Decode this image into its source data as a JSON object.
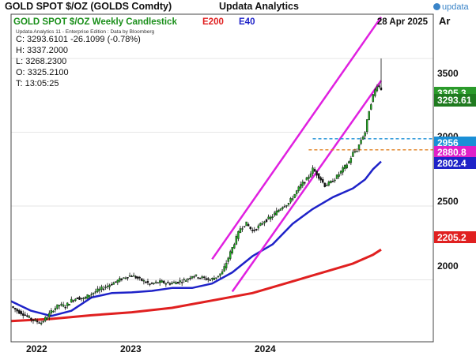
{
  "header": {
    "title": "GOLD SPOT $/OZ (GOLDS Comdty)",
    "brand": "Updata Analytics",
    "logo_text": "updata"
  },
  "chart_data": {
    "type": "candlestick",
    "title": "GOLD SPOT $/OZ Weekly Candlestick",
    "legend": [
      "E200",
      "E40"
    ],
    "date_label": "28 Apr 2025",
    "corner_label": "Ar",
    "attribution": "Updata Analytics 11 - Enterprise Edition : Data by Bloomberg",
    "ohlc_readout": [
      "C: 3293.6101  -26.1099 (-0.78%)",
      "H: 3337.2000",
      "L: 3268.2300",
      "O: 3325.2100",
      "T: 13:05:25"
    ],
    "x_labels": [
      "2022",
      "2023",
      "2024"
    ],
    "y_ticks": [
      "2000",
      "2500",
      "3000",
      "3500"
    ],
    "ylim": [
      1580,
      3800
    ],
    "price_tags": [
      {
        "label": "3305.3",
        "value": 3305,
        "color": "#2a9a2a"
      },
      {
        "label": "3293.61",
        "value": 3293.61,
        "color": "#1f7a1f"
      },
      {
        "label": "2956",
        "value": 2956,
        "color": "#1a8fd6"
      },
      {
        "label": "2880.8",
        "value": 2880.8,
        "color": "#e020c8"
      },
      {
        "label": "2802.4",
        "value": 2802.4,
        "color": "#1e22c8"
      },
      {
        "label": "2205.2",
        "value": 2205.2,
        "color": "#e02020"
      }
    ],
    "series": [
      {
        "name": "Gold weekly close",
        "x": [
          0,
          3,
          6,
          9,
          12,
          15,
          18,
          21,
          24,
          27,
          30,
          33,
          36,
          39,
          42,
          45,
          48,
          51,
          54,
          57,
          60,
          63,
          66,
          69,
          72,
          75,
          78,
          81,
          84,
          87,
          90,
          93,
          96,
          99,
          102,
          105,
          108,
          111,
          114,
          117,
          120,
          123,
          126,
          129,
          132,
          135,
          138,
          141,
          144,
          147,
          150,
          153,
          156,
          159,
          162,
          165,
          168,
          170,
          172,
          174,
          176,
          178,
          180,
          182,
          184
        ],
        "values": [
          1820,
          1790,
          1770,
          1740,
          1720,
          1710,
          1750,
          1800,
          1830,
          1820,
          1860,
          1880,
          1870,
          1900,
          1920,
          1940,
          1960,
          1980,
          2000,
          2020,
          2030,
          2010,
          1990,
          1970,
          1980,
          1985,
          1975,
          1980,
          1990,
          2000,
          2030,
          2020,
          2010,
          2000,
          2020,
          2050,
          2150,
          2250,
          2350,
          2380,
          2330,
          2360,
          2400,
          2420,
          2460,
          2500,
          2520,
          2580,
          2640,
          2680,
          2750,
          2700,
          2640,
          2660,
          2700,
          2750,
          2800,
          2860,
          2880,
          2950,
          3000,
          3150,
          3250,
          3320,
          3294
        ]
      },
      {
        "name": "E40",
        "x": [
          0,
          10,
          20,
          30,
          40,
          50,
          60,
          70,
          80,
          90,
          100,
          110,
          120,
          130,
          140,
          150,
          160,
          170,
          176,
          180,
          184
        ],
        "values": [
          1855,
          1790,
          1755,
          1790,
          1880,
          1910,
          1915,
          1925,
          1945,
          1945,
          1975,
          2050,
          2160,
          2240,
          2380,
          2480,
          2560,
          2620,
          2680,
          2750,
          2802
        ]
      },
      {
        "name": "E200",
        "x": [
          0,
          20,
          40,
          60,
          80,
          100,
          120,
          140,
          160,
          170,
          180,
          184
        ],
        "values": [
          1720,
          1735,
          1760,
          1780,
          1810,
          1860,
          1910,
          1990,
          2070,
          2110,
          2170,
          2205
        ]
      },
      {
        "name": "Upper channel",
        "x": [
          100,
          184
        ],
        "values": [
          2140,
          3780
        ]
      },
      {
        "name": "Lower channel",
        "x": [
          110,
          184
        ],
        "values": [
          1920,
          3350
        ]
      },
      {
        "name": "Level 2956",
        "x": [
          150,
          184
        ],
        "values": [
          2956,
          2956
        ]
      },
      {
        "name": "Level 2880.8",
        "x": [
          148,
          184
        ],
        "values": [
          2880.8,
          2880.8
        ]
      }
    ]
  }
}
